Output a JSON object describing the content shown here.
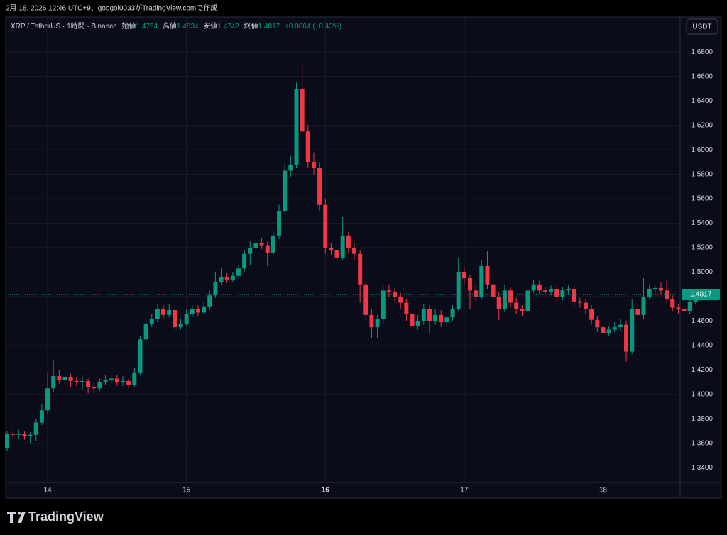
{
  "caption": "2月 18, 2026 12:46 UTC+9、googol0033がTradingView.comで作成",
  "logo": "TradingView",
  "currency_button": "USDT",
  "chart_data": {
    "type": "candlestick",
    "symbol": "XRP / TetherUS · 1時間 · Binance",
    "open_label": "始値",
    "high_label": "高値",
    "low_label": "安値",
    "close_label": "終値",
    "change": "+0.0064 (+0.43%)",
    "up_color": "#089981",
    "down_color": "#f23645",
    "grid": true,
    "ylim": [
      1.328,
      1.708
    ],
    "yticks": [
      {
        "value": 1.34,
        "label": "1.3400"
      },
      {
        "value": 1.36,
        "label": "1.3600"
      },
      {
        "value": 1.38,
        "label": "1.3800"
      },
      {
        "value": 1.4,
        "label": "1.4000"
      },
      {
        "value": 1.42,
        "label": "1.4200"
      },
      {
        "value": 1.44,
        "label": "1.4400"
      },
      {
        "value": 1.46,
        "label": "1.4600"
      },
      {
        "value": 1.48,
        "label": "1.4800"
      },
      {
        "value": 1.5,
        "label": "1.5000"
      },
      {
        "value": 1.52,
        "label": "1.5200"
      },
      {
        "value": 1.54,
        "label": "1.5400"
      },
      {
        "value": 1.56,
        "label": "1.5600"
      },
      {
        "value": 1.58,
        "label": "1.5800"
      },
      {
        "value": 1.6,
        "label": "1.6000"
      },
      {
        "value": 1.62,
        "label": "1.6200"
      },
      {
        "value": 1.64,
        "label": "1.6400"
      },
      {
        "value": 1.66,
        "label": "1.6600"
      },
      {
        "value": 1.68,
        "label": "1.6800"
      }
    ],
    "categories": [
      null,
      null,
      null,
      null,
      null,
      null,
      null,
      "14",
      null,
      null,
      null,
      null,
      null,
      null,
      null,
      null,
      null,
      null,
      null,
      null,
      null,
      null,
      null,
      null,
      null,
      null,
      null,
      null,
      null,
      null,
      null,
      "15",
      null,
      null,
      null,
      null,
      null,
      null,
      null,
      null,
      null,
      null,
      null,
      null,
      null,
      null,
      null,
      null,
      null,
      null,
      null,
      null,
      null,
      null,
      null,
      "16",
      null,
      null,
      null,
      null,
      null,
      null,
      null,
      null,
      null,
      null,
      null,
      null,
      null,
      null,
      null,
      null,
      null,
      null,
      null,
      null,
      null,
      null,
      null,
      "17",
      null,
      null,
      null,
      null,
      null,
      null,
      null,
      null,
      null,
      null,
      null,
      null,
      null,
      null,
      null,
      null,
      null,
      null,
      null,
      null,
      null,
      null,
      null,
      "18",
      null,
      null,
      null,
      null,
      null,
      null,
      null,
      null,
      null,
      null,
      null,
      null,
      null,
      null,
      null,
      null
    ],
    "open": [
      1.356,
      1.368,
      1.367,
      1.368,
      1.366,
      1.367,
      1.377,
      1.387,
      1.405,
      1.415,
      1.412,
      1.414,
      1.411,
      1.41,
      1.411,
      1.406,
      1.405,
      1.41,
      1.412,
      1.413,
      1.41,
      1.411,
      1.408,
      1.418,
      1.445,
      1.458,
      1.462,
      1.47,
      1.465,
      1.469,
      1.455,
      1.458,
      1.466,
      1.47,
      1.467,
      1.472,
      1.481,
      1.492,
      1.496,
      1.494,
      1.497,
      1.503,
      1.515,
      1.52,
      1.524,
      1.522,
      1.516,
      1.53,
      1.55,
      1.583,
      1.588,
      1.65,
      1.615,
      1.59,
      1.585,
      1.555,
      1.52,
      1.518,
      1.512,
      1.53,
      1.52,
      1.515,
      1.49,
      1.465,
      1.455,
      1.462,
      1.485,
      1.484,
      1.48,
      1.475,
      1.466,
      1.456,
      1.46,
      1.47,
      1.46,
      1.465,
      1.459,
      1.463,
      1.47,
      1.5,
      1.495,
      1.485,
      1.48,
      1.505,
      1.49,
      1.48,
      1.47,
      1.485,
      1.475,
      1.47,
      1.468,
      1.485,
      1.49,
      1.485,
      1.484,
      1.486,
      1.48,
      1.485,
      1.486,
      1.476,
      1.475,
      1.47,
      1.461,
      1.455,
      1.45,
      1.453,
      1.455,
      1.457,
      1.435,
      1.47,
      1.465,
      1.48,
      1.486,
      1.487,
      1.485,
      1.478,
      1.471,
      1.47,
      1.468,
      1.4754
    ],
    "high": [
      1.37,
      1.37,
      1.371,
      1.37,
      1.369,
      1.38,
      1.392,
      1.418,
      1.428,
      1.42,
      1.418,
      1.417,
      1.414,
      1.416,
      1.413,
      1.409,
      1.413,
      1.416,
      1.416,
      1.416,
      1.415,
      1.413,
      1.422,
      1.448,
      1.462,
      1.466,
      1.474,
      1.473,
      1.474,
      1.471,
      1.462,
      1.47,
      1.473,
      1.473,
      1.476,
      1.485,
      1.5,
      1.503,
      1.499,
      1.5,
      1.506,
      1.518,
      1.525,
      1.535,
      1.528,
      1.525,
      1.534,
      1.555,
      1.59,
      1.595,
      1.655,
      1.672,
      1.62,
      1.598,
      1.59,
      1.56,
      1.524,
      1.522,
      1.545,
      1.533,
      1.524,
      1.518,
      1.492,
      1.47,
      1.465,
      1.489,
      1.49,
      1.487,
      1.483,
      1.478,
      1.47,
      1.465,
      1.474,
      1.473,
      1.47,
      1.469,
      1.467,
      1.473,
      1.512,
      1.505,
      1.498,
      1.489,
      1.51,
      1.517,
      1.494,
      1.484,
      1.49,
      1.488,
      1.479,
      1.473,
      1.488,
      1.494,
      1.493,
      1.488,
      1.489,
      1.489,
      1.488,
      1.489,
      1.489,
      1.479,
      1.478,
      1.473,
      1.464,
      1.458,
      1.456,
      1.459,
      1.462,
      1.46,
      1.478,
      1.474,
      1.495,
      1.49,
      1.49,
      1.492,
      1.493,
      1.481,
      1.474,
      1.473,
      1.478,
      1.4834
    ],
    "low": [
      1.354,
      1.365,
      1.364,
      1.363,
      1.36,
      1.362,
      1.375,
      1.384,
      1.402,
      1.409,
      1.407,
      1.406,
      1.407,
      1.404,
      1.401,
      1.401,
      1.403,
      1.408,
      1.409,
      1.407,
      1.407,
      1.405,
      1.406,
      1.416,
      1.442,
      1.455,
      1.459,
      1.462,
      1.463,
      1.452,
      1.453,
      1.456,
      1.463,
      1.464,
      1.465,
      1.469,
      1.479,
      1.49,
      1.491,
      1.492,
      1.495,
      1.5,
      1.506,
      1.518,
      1.519,
      1.505,
      1.514,
      1.527,
      1.548,
      1.578,
      1.585,
      1.612,
      1.585,
      1.58,
      1.55,
      1.515,
      1.514,
      1.508,
      1.51,
      1.516,
      1.51,
      1.475,
      1.46,
      1.446,
      1.446,
      1.458,
      1.48,
      1.476,
      1.47,
      1.46,
      1.453,
      1.453,
      1.457,
      1.45,
      1.457,
      1.455,
      1.456,
      1.46,
      1.468,
      1.49,
      1.47,
      1.476,
      1.478,
      1.486,
      1.476,
      1.461,
      1.467,
      1.471,
      1.466,
      1.464,
      1.466,
      1.483,
      1.482,
      1.481,
      1.481,
      1.476,
      1.477,
      1.482,
      1.472,
      1.471,
      1.466,
      1.457,
      1.451,
      1.447,
      1.448,
      1.451,
      1.452,
      1.427,
      1.433,
      1.46,
      1.462,
      1.478,
      1.483,
      1.481,
      1.475,
      1.468,
      1.466,
      1.464,
      1.466,
      1.4742
    ],
    "close": [
      1.368,
      1.367,
      1.368,
      1.366,
      1.367,
      1.377,
      1.387,
      1.405,
      1.415,
      1.412,
      1.414,
      1.411,
      1.41,
      1.411,
      1.406,
      1.405,
      1.41,
      1.412,
      1.413,
      1.41,
      1.411,
      1.408,
      1.418,
      1.445,
      1.458,
      1.462,
      1.47,
      1.465,
      1.469,
      1.455,
      1.458,
      1.466,
      1.47,
      1.467,
      1.472,
      1.481,
      1.492,
      1.496,
      1.494,
      1.497,
      1.503,
      1.515,
      1.52,
      1.524,
      1.522,
      1.516,
      1.53,
      1.55,
      1.583,
      1.588,
      1.65,
      1.615,
      1.59,
      1.585,
      1.555,
      1.52,
      1.518,
      1.512,
      1.53,
      1.52,
      1.515,
      1.49,
      1.465,
      1.455,
      1.462,
      1.485,
      1.484,
      1.48,
      1.475,
      1.466,
      1.456,
      1.46,
      1.47,
      1.46,
      1.465,
      1.459,
      1.463,
      1.47,
      1.5,
      1.495,
      1.485,
      1.48,
      1.505,
      1.49,
      1.48,
      1.47,
      1.485,
      1.475,
      1.47,
      1.468,
      1.485,
      1.49,
      1.485,
      1.484,
      1.486,
      1.48,
      1.485,
      1.486,
      1.476,
      1.475,
      1.47,
      1.461,
      1.455,
      1.45,
      1.453,
      1.455,
      1.457,
      1.435,
      1.47,
      1.465,
      1.48,
      1.486,
      1.487,
      1.485,
      1.478,
      1.471,
      1.47,
      1.468,
      1.4754,
      1.4817
    ]
  }
}
